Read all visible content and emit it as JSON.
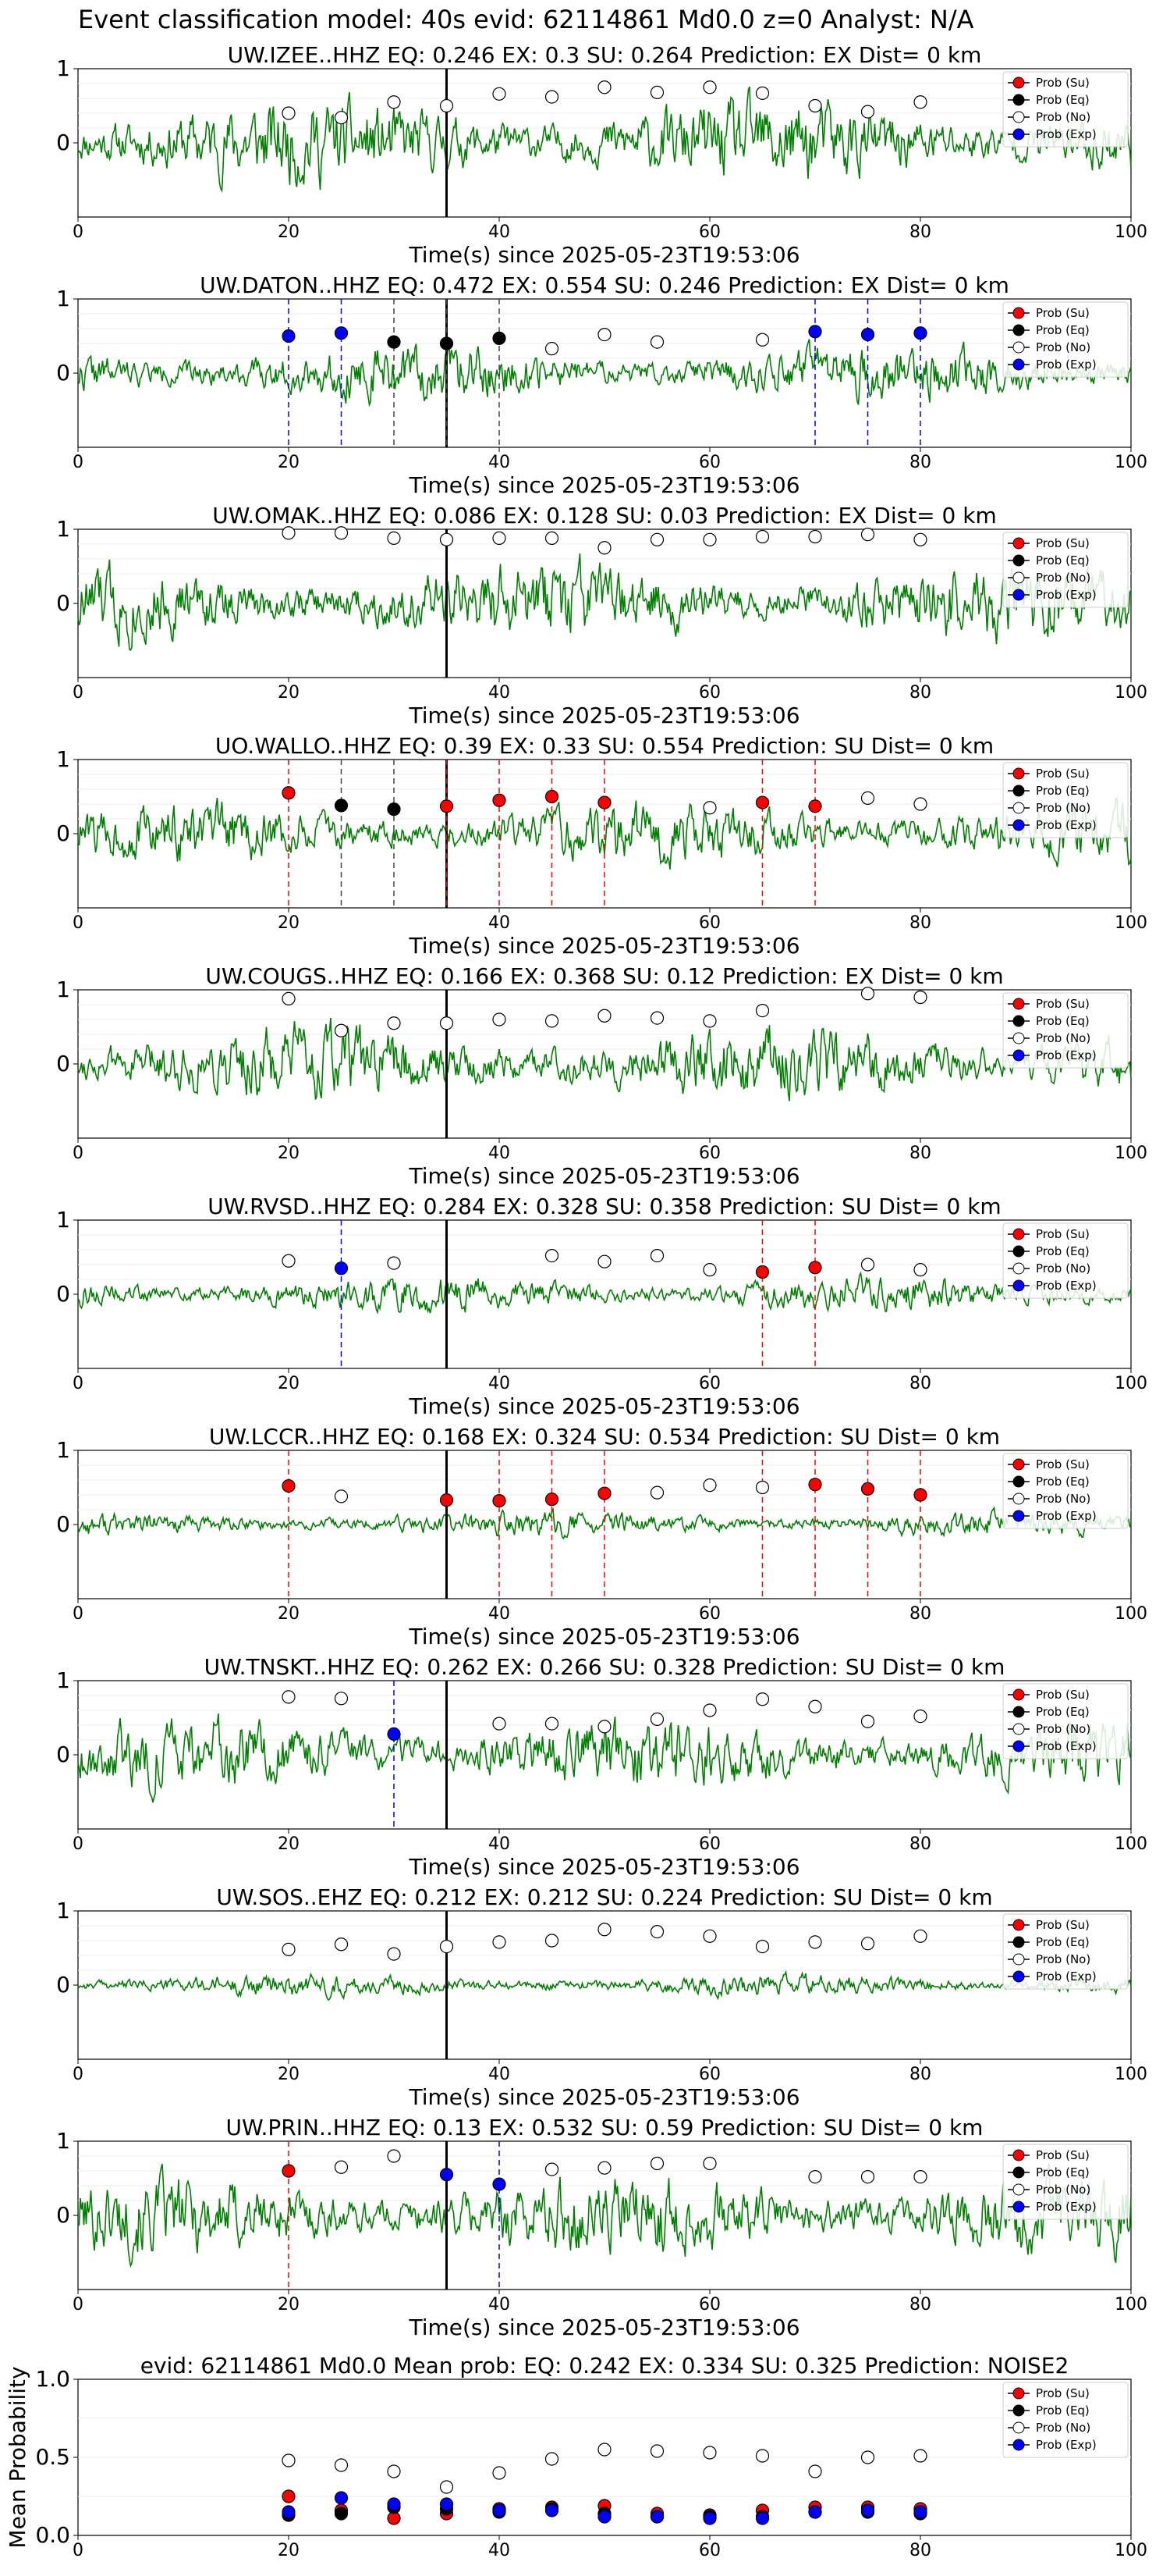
{
  "suptitle": "Event classification model: 40s evid: 62114861 Md0.0 z=0 Analyst: N/A",
  "xlabel": "Time(s) since 2025-05-23T19:53:06",
  "legend": [
    "Prob (Su)",
    "Prob (Eq)",
    "Prob (No)",
    "Prob (Exp)"
  ],
  "colors": {
    "su": "#ff0000",
    "eq": "#000000",
    "no": "#ffffff",
    "exp": "#0000ff",
    "trace": "#008000"
  },
  "chart_data": [
    {
      "type": "line",
      "title": "UW.IZEE..HHZ   EQ: 0.246  EX: 0.3  SU: 0.264   Prediction: EX    Dist= 0 km",
      "xlim": [
        0,
        100
      ],
      "ylim": [
        -1,
        1
      ],
      "xticks": [
        0,
        20,
        40,
        60,
        80,
        100
      ],
      "yticks": [
        0,
        1
      ],
      "amp": 0.85,
      "seed": 11,
      "points": [
        {
          "x": 20,
          "y": 0.4,
          "c": "no"
        },
        {
          "x": 25,
          "y": 0.34,
          "c": "no"
        },
        {
          "x": 30,
          "y": 0.55,
          "c": "no"
        },
        {
          "x": 35,
          "y": 0.5,
          "c": "no"
        },
        {
          "x": 40,
          "y": 0.66,
          "c": "no"
        },
        {
          "x": 45,
          "y": 0.62,
          "c": "no"
        },
        {
          "x": 50,
          "y": 0.75,
          "c": "no"
        },
        {
          "x": 55,
          "y": 0.68,
          "c": "no"
        },
        {
          "x": 60,
          "y": 0.75,
          "c": "no"
        },
        {
          "x": 65,
          "y": 0.67,
          "c": "no"
        },
        {
          "x": 70,
          "y": 0.5,
          "c": "no"
        },
        {
          "x": 75,
          "y": 0.42,
          "c": "no"
        },
        {
          "x": 80,
          "y": 0.55,
          "c": "no"
        }
      ],
      "vlines": []
    },
    {
      "type": "line",
      "title": "UW.DATON..HHZ   EQ: 0.472  EX: 0.554  SU: 0.246   Prediction: EX    Dist= 0 km",
      "xlim": [
        0,
        100
      ],
      "ylim": [
        -1,
        1
      ],
      "xticks": [
        0,
        20,
        40,
        60,
        80,
        100
      ],
      "yticks": [
        0,
        1
      ],
      "amp": 0.55,
      "seed": 22,
      "points": [
        {
          "x": 20,
          "y": 0.5,
          "c": "exp"
        },
        {
          "x": 25,
          "y": 0.54,
          "c": "exp"
        },
        {
          "x": 30,
          "y": 0.42,
          "c": "eq"
        },
        {
          "x": 35,
          "y": 0.4,
          "c": "eq"
        },
        {
          "x": 40,
          "y": 0.47,
          "c": "eq"
        },
        {
          "x": 45,
          "y": 0.33,
          "c": "no"
        },
        {
          "x": 50,
          "y": 0.52,
          "c": "no"
        },
        {
          "x": 55,
          "y": 0.42,
          "c": "no"
        },
        {
          "x": 65,
          "y": 0.45,
          "c": "no"
        },
        {
          "x": 70,
          "y": 0.56,
          "c": "exp"
        },
        {
          "x": 75,
          "y": 0.52,
          "c": "exp"
        },
        {
          "x": 80,
          "y": 0.54,
          "c": "exp"
        }
      ],
      "vlines": [
        {
          "x": 20,
          "c": "exp"
        },
        {
          "x": 25,
          "c": "exp"
        },
        {
          "x": 30,
          "c": "eq"
        },
        {
          "x": 35,
          "c": "eq"
        },
        {
          "x": 40,
          "c": "eq"
        },
        {
          "x": 70,
          "c": "exp"
        },
        {
          "x": 75,
          "c": "exp"
        },
        {
          "x": 80,
          "c": "exp"
        }
      ]
    },
    {
      "type": "line",
      "title": "UW.OMAK..HHZ   EQ: 0.086  EX: 0.128  SU: 0.03   Prediction: EX    Dist= 0 km",
      "xlim": [
        0,
        100
      ],
      "ylim": [
        -1,
        1
      ],
      "xticks": [
        0,
        20,
        40,
        60,
        80,
        100
      ],
      "yticks": [
        0,
        1
      ],
      "amp": 0.8,
      "seed": 33,
      "points": [
        {
          "x": 20,
          "y": 0.95,
          "c": "no"
        },
        {
          "x": 25,
          "y": 0.95,
          "c": "no"
        },
        {
          "x": 30,
          "y": 0.88,
          "c": "no"
        },
        {
          "x": 35,
          "y": 0.86,
          "c": "no"
        },
        {
          "x": 40,
          "y": 0.88,
          "c": "no"
        },
        {
          "x": 45,
          "y": 0.88,
          "c": "no"
        },
        {
          "x": 50,
          "y": 0.75,
          "c": "no"
        },
        {
          "x": 55,
          "y": 0.86,
          "c": "no"
        },
        {
          "x": 60,
          "y": 0.86,
          "c": "no"
        },
        {
          "x": 65,
          "y": 0.9,
          "c": "no"
        },
        {
          "x": 70,
          "y": 0.9,
          "c": "no"
        },
        {
          "x": 75,
          "y": 0.93,
          "c": "no"
        },
        {
          "x": 80,
          "y": 0.86,
          "c": "no"
        }
      ],
      "vlines": []
    },
    {
      "type": "line",
      "title": "UO.WALLO..HHZ   EQ: 0.39  EX: 0.33  SU: 0.554   Prediction: SU    Dist= 0 km",
      "xlim": [
        0,
        100
      ],
      "ylim": [
        -1,
        1
      ],
      "xticks": [
        0,
        20,
        40,
        60,
        80,
        100
      ],
      "yticks": [
        0,
        1
      ],
      "amp": 0.6,
      "seed": 44,
      "points": [
        {
          "x": 20,
          "y": 0.55,
          "c": "su"
        },
        {
          "x": 25,
          "y": 0.38,
          "c": "eq"
        },
        {
          "x": 30,
          "y": 0.33,
          "c": "eq"
        },
        {
          "x": 35,
          "y": 0.37,
          "c": "su"
        },
        {
          "x": 40,
          "y": 0.45,
          "c": "su"
        },
        {
          "x": 45,
          "y": 0.5,
          "c": "su"
        },
        {
          "x": 50,
          "y": 0.42,
          "c": "su"
        },
        {
          "x": 60,
          "y": 0.35,
          "c": "no"
        },
        {
          "x": 65,
          "y": 0.42,
          "c": "su"
        },
        {
          "x": 70,
          "y": 0.37,
          "c": "su"
        },
        {
          "x": 75,
          "y": 0.48,
          "c": "no"
        },
        {
          "x": 80,
          "y": 0.4,
          "c": "no"
        }
      ],
      "vlines": [
        {
          "x": 20,
          "c": "su"
        },
        {
          "x": 25,
          "c": "eq"
        },
        {
          "x": 30,
          "c": "eq"
        },
        {
          "x": 35,
          "c": "su"
        },
        {
          "x": 40,
          "c": "su"
        },
        {
          "x": 45,
          "c": "su"
        },
        {
          "x": 50,
          "c": "su"
        },
        {
          "x": 65,
          "c": "su"
        },
        {
          "x": 70,
          "c": "su"
        }
      ]
    },
    {
      "type": "line",
      "title": "UW.COUGS..HHZ   EQ: 0.166  EX: 0.368  SU: 0.12   Prediction: EX    Dist= 0 km",
      "xlim": [
        0,
        100
      ],
      "ylim": [
        -1,
        1
      ],
      "xticks": [
        0,
        20,
        40,
        60,
        80,
        100
      ],
      "yticks": [
        0,
        1
      ],
      "amp": 0.75,
      "seed": 55,
      "points": [
        {
          "x": 20,
          "y": 0.88,
          "c": "no"
        },
        {
          "x": 25,
          "y": 0.45,
          "c": "no"
        },
        {
          "x": 30,
          "y": 0.55,
          "c": "no"
        },
        {
          "x": 35,
          "y": 0.55,
          "c": "no"
        },
        {
          "x": 40,
          "y": 0.6,
          "c": "no"
        },
        {
          "x": 45,
          "y": 0.58,
          "c": "no"
        },
        {
          "x": 50,
          "y": 0.65,
          "c": "no"
        },
        {
          "x": 55,
          "y": 0.62,
          "c": "no"
        },
        {
          "x": 60,
          "y": 0.58,
          "c": "no"
        },
        {
          "x": 65,
          "y": 0.72,
          "c": "no"
        },
        {
          "x": 75,
          "y": 0.95,
          "c": "no"
        },
        {
          "x": 80,
          "y": 0.9,
          "c": "no"
        }
      ],
      "vlines": []
    },
    {
      "type": "line",
      "title": "UW.RVSD..HHZ   EQ: 0.284  EX: 0.328  SU: 0.358   Prediction: SU    Dist= 0 km",
      "xlim": [
        0,
        100
      ],
      "ylim": [
        -1,
        1
      ],
      "xticks": [
        0,
        20,
        40,
        60,
        80,
        100
      ],
      "yticks": [
        0,
        1
      ],
      "amp": 0.35,
      "seed": 66,
      "points": [
        {
          "x": 20,
          "y": 0.45,
          "c": "no"
        },
        {
          "x": 25,
          "y": 0.35,
          "c": "exp"
        },
        {
          "x": 30,
          "y": 0.42,
          "c": "no"
        },
        {
          "x": 45,
          "y": 0.52,
          "c": "no"
        },
        {
          "x": 50,
          "y": 0.44,
          "c": "no"
        },
        {
          "x": 55,
          "y": 0.52,
          "c": "no"
        },
        {
          "x": 60,
          "y": 0.33,
          "c": "no"
        },
        {
          "x": 65,
          "y": 0.3,
          "c": "su"
        },
        {
          "x": 70,
          "y": 0.36,
          "c": "su"
        },
        {
          "x": 75,
          "y": 0.4,
          "c": "no"
        },
        {
          "x": 80,
          "y": 0.33,
          "c": "no"
        }
      ],
      "vlines": [
        {
          "x": 25,
          "c": "exp"
        },
        {
          "x": 65,
          "c": "su"
        },
        {
          "x": 70,
          "c": "su"
        }
      ]
    },
    {
      "type": "line",
      "title": "UW.LCCR..HHZ   EQ: 0.168  EX: 0.324  SU: 0.534   Prediction: SU    Dist= 0 km",
      "xlim": [
        0,
        100
      ],
      "ylim": [
        -1,
        1
      ],
      "xticks": [
        0,
        20,
        40,
        60,
        80,
        100
      ],
      "yticks": [
        0,
        1
      ],
      "amp": 0.25,
      "seed": 77,
      "points": [
        {
          "x": 20,
          "y": 0.52,
          "c": "su"
        },
        {
          "x": 25,
          "y": 0.38,
          "c": "no"
        },
        {
          "x": 35,
          "y": 0.33,
          "c": "su"
        },
        {
          "x": 40,
          "y": 0.32,
          "c": "su"
        },
        {
          "x": 45,
          "y": 0.34,
          "c": "su"
        },
        {
          "x": 50,
          "y": 0.42,
          "c": "su"
        },
        {
          "x": 55,
          "y": 0.43,
          "c": "no"
        },
        {
          "x": 60,
          "y": 0.53,
          "c": "no"
        },
        {
          "x": 65,
          "y": 0.5,
          "c": "no"
        },
        {
          "x": 70,
          "y": 0.54,
          "c": "su"
        },
        {
          "x": 75,
          "y": 0.48,
          "c": "su"
        },
        {
          "x": 80,
          "y": 0.4,
          "c": "su"
        }
      ],
      "vlines": [
        {
          "x": 20,
          "c": "su"
        },
        {
          "x": 40,
          "c": "su"
        },
        {
          "x": 45,
          "c": "su"
        },
        {
          "x": 50,
          "c": "su"
        },
        {
          "x": 65,
          "c": "su"
        },
        {
          "x": 70,
          "c": "su"
        },
        {
          "x": 75,
          "c": "su"
        },
        {
          "x": 80,
          "c": "su"
        }
      ]
    },
    {
      "type": "line",
      "title": "UW.TNSKT..HHZ   EQ: 0.262  EX: 0.266  SU: 0.328   Prediction: SU    Dist= 0 km",
      "xlim": [
        0,
        100
      ],
      "ylim": [
        -1,
        1
      ],
      "xticks": [
        0,
        20,
        40,
        60,
        80,
        100
      ],
      "yticks": [
        0,
        1
      ],
      "amp": 0.7,
      "seed": 88,
      "points": [
        {
          "x": 20,
          "y": 0.78,
          "c": "no"
        },
        {
          "x": 25,
          "y": 0.76,
          "c": "no"
        },
        {
          "x": 30,
          "y": 0.28,
          "c": "exp"
        },
        {
          "x": 40,
          "y": 0.42,
          "c": "no"
        },
        {
          "x": 45,
          "y": 0.42,
          "c": "no"
        },
        {
          "x": 50,
          "y": 0.38,
          "c": "no"
        },
        {
          "x": 55,
          "y": 0.48,
          "c": "no"
        },
        {
          "x": 60,
          "y": 0.6,
          "c": "no"
        },
        {
          "x": 65,
          "y": 0.75,
          "c": "no"
        },
        {
          "x": 70,
          "y": 0.65,
          "c": "no"
        },
        {
          "x": 75,
          "y": 0.45,
          "c": "no"
        },
        {
          "x": 80,
          "y": 0.52,
          "c": "no"
        }
      ],
      "vlines": [
        {
          "x": 30,
          "c": "exp"
        }
      ]
    },
    {
      "type": "line",
      "title": "UW.SOS..EHZ   EQ: 0.212  EX: 0.212  SU: 0.224   Prediction: SU    Dist= 0 km",
      "xlim": [
        0,
        100
      ],
      "ylim": [
        -1,
        1
      ],
      "xticks": [
        0,
        20,
        40,
        60,
        80,
        100
      ],
      "yticks": [
        0,
        1
      ],
      "amp": 0.22,
      "seed": 99,
      "points": [
        {
          "x": 20,
          "y": 0.48,
          "c": "no"
        },
        {
          "x": 25,
          "y": 0.55,
          "c": "no"
        },
        {
          "x": 30,
          "y": 0.42,
          "c": "no"
        },
        {
          "x": 35,
          "y": 0.52,
          "c": "no"
        },
        {
          "x": 40,
          "y": 0.58,
          "c": "no"
        },
        {
          "x": 45,
          "y": 0.6,
          "c": "no"
        },
        {
          "x": 50,
          "y": 0.75,
          "c": "no"
        },
        {
          "x": 55,
          "y": 0.72,
          "c": "no"
        },
        {
          "x": 60,
          "y": 0.66,
          "c": "no"
        },
        {
          "x": 65,
          "y": 0.52,
          "c": "no"
        },
        {
          "x": 70,
          "y": 0.58,
          "c": "no"
        },
        {
          "x": 75,
          "y": 0.56,
          "c": "no"
        },
        {
          "x": 80,
          "y": 0.66,
          "c": "no"
        }
      ],
      "vlines": []
    },
    {
      "type": "line",
      "title": "UW.PRIN..HHZ   EQ: 0.13  EX: 0.532  SU: 0.59   Prediction: SU    Dist= 0 km",
      "xlim": [
        0,
        100
      ],
      "ylim": [
        -1,
        1
      ],
      "xticks": [
        0,
        20,
        40,
        60,
        80,
        100
      ],
      "yticks": [
        0,
        1
      ],
      "amp": 0.8,
      "seed": 101,
      "points": [
        {
          "x": 20,
          "y": 0.6,
          "c": "su"
        },
        {
          "x": 25,
          "y": 0.65,
          "c": "no"
        },
        {
          "x": 30,
          "y": 0.8,
          "c": "no"
        },
        {
          "x": 35,
          "y": 0.55,
          "c": "exp"
        },
        {
          "x": 40,
          "y": 0.42,
          "c": "exp"
        },
        {
          "x": 45,
          "y": 0.62,
          "c": "no"
        },
        {
          "x": 50,
          "y": 0.64,
          "c": "no"
        },
        {
          "x": 55,
          "y": 0.7,
          "c": "no"
        },
        {
          "x": 60,
          "y": 0.7,
          "c": "no"
        },
        {
          "x": 70,
          "y": 0.52,
          "c": "no"
        },
        {
          "x": 75,
          "y": 0.52,
          "c": "no"
        },
        {
          "x": 80,
          "y": 0.52,
          "c": "no"
        }
      ],
      "vlines": [
        {
          "x": 20,
          "c": "su"
        },
        {
          "x": 40,
          "c": "exp"
        }
      ]
    },
    {
      "type": "scatter",
      "title": "evid: 62114861  Md0.0   Mean prob:   EQ: 0.242  EX: 0.334  SU: 0.325   Prediction: NOISE2",
      "ylabel": "Mean Probability",
      "xlim": [
        0,
        100
      ],
      "ylim": [
        0,
        1
      ],
      "xticks": [
        0,
        20,
        40,
        60,
        80,
        100
      ],
      "yticks": [
        0.0,
        0.5,
        1.0
      ],
      "x": [
        20,
        25,
        30,
        35,
        40,
        45,
        50,
        55,
        60,
        65,
        70,
        75,
        80
      ],
      "series": [
        {
          "name": "Prob (No)",
          "c": "no",
          "values": [
            0.48,
            0.45,
            0.41,
            0.31,
            0.4,
            0.49,
            0.55,
            0.54,
            0.53,
            0.51,
            0.41,
            0.5,
            0.51
          ]
        },
        {
          "name": "Prob (Su)",
          "c": "su",
          "values": [
            0.25,
            0.16,
            0.11,
            0.14,
            0.17,
            0.18,
            0.19,
            0.14,
            0.13,
            0.16,
            0.18,
            0.18,
            0.17
          ]
        },
        {
          "name": "Prob (Eq)",
          "c": "eq",
          "values": [
            0.13,
            0.14,
            0.18,
            0.17,
            0.15,
            0.17,
            0.14,
            0.12,
            0.12,
            0.12,
            0.15,
            0.15,
            0.14
          ]
        },
        {
          "name": "Prob (Exp)",
          "c": "exp",
          "values": [
            0.15,
            0.24,
            0.2,
            0.2,
            0.16,
            0.16,
            0.12,
            0.12,
            0.11,
            0.11,
            0.15,
            0.16,
            0.15
          ]
        }
      ]
    }
  ]
}
